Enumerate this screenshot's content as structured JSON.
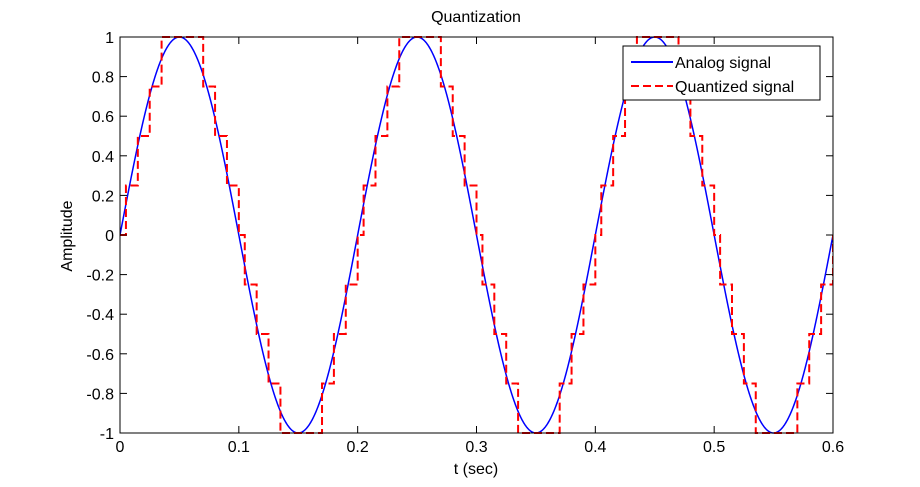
{
  "chart_data": {
    "type": "line",
    "title": "Quantization",
    "xlabel": "t (sec)",
    "ylabel": "Amplitude",
    "xlim": [
      0,
      0.6
    ],
    "ylim": [
      -1,
      1
    ],
    "xticks": [
      "0",
      "0.1",
      "0.2",
      "0.3",
      "0.4",
      "0.5",
      "0.6"
    ],
    "xtick_values": [
      0,
      0.1,
      0.2,
      0.3,
      0.4,
      0.5,
      0.6
    ],
    "yticks": [
      "-1",
      "-0.8",
      "-0.6",
      "-0.4",
      "-0.2",
      "0",
      "0.2",
      "0.4",
      "0.6",
      "0.8",
      "1"
    ],
    "ytick_values": [
      -1,
      -0.8,
      -0.6,
      -0.4,
      -0.2,
      0,
      0.2,
      0.4,
      0.6,
      0.8,
      1
    ],
    "grid": false,
    "legend_position": "top-right",
    "series": [
      {
        "name": "Analog signal",
        "style": "solid",
        "color": "#0000ff",
        "function": "sin(2*pi*5*t)",
        "frequency_hz": 5,
        "amplitude": 1
      },
      {
        "name": "Quantized signal",
        "style": "dashed",
        "color": "#ff0000",
        "step_amplitude": 0.25,
        "sample_interval_sec": 0.005
      }
    ]
  }
}
